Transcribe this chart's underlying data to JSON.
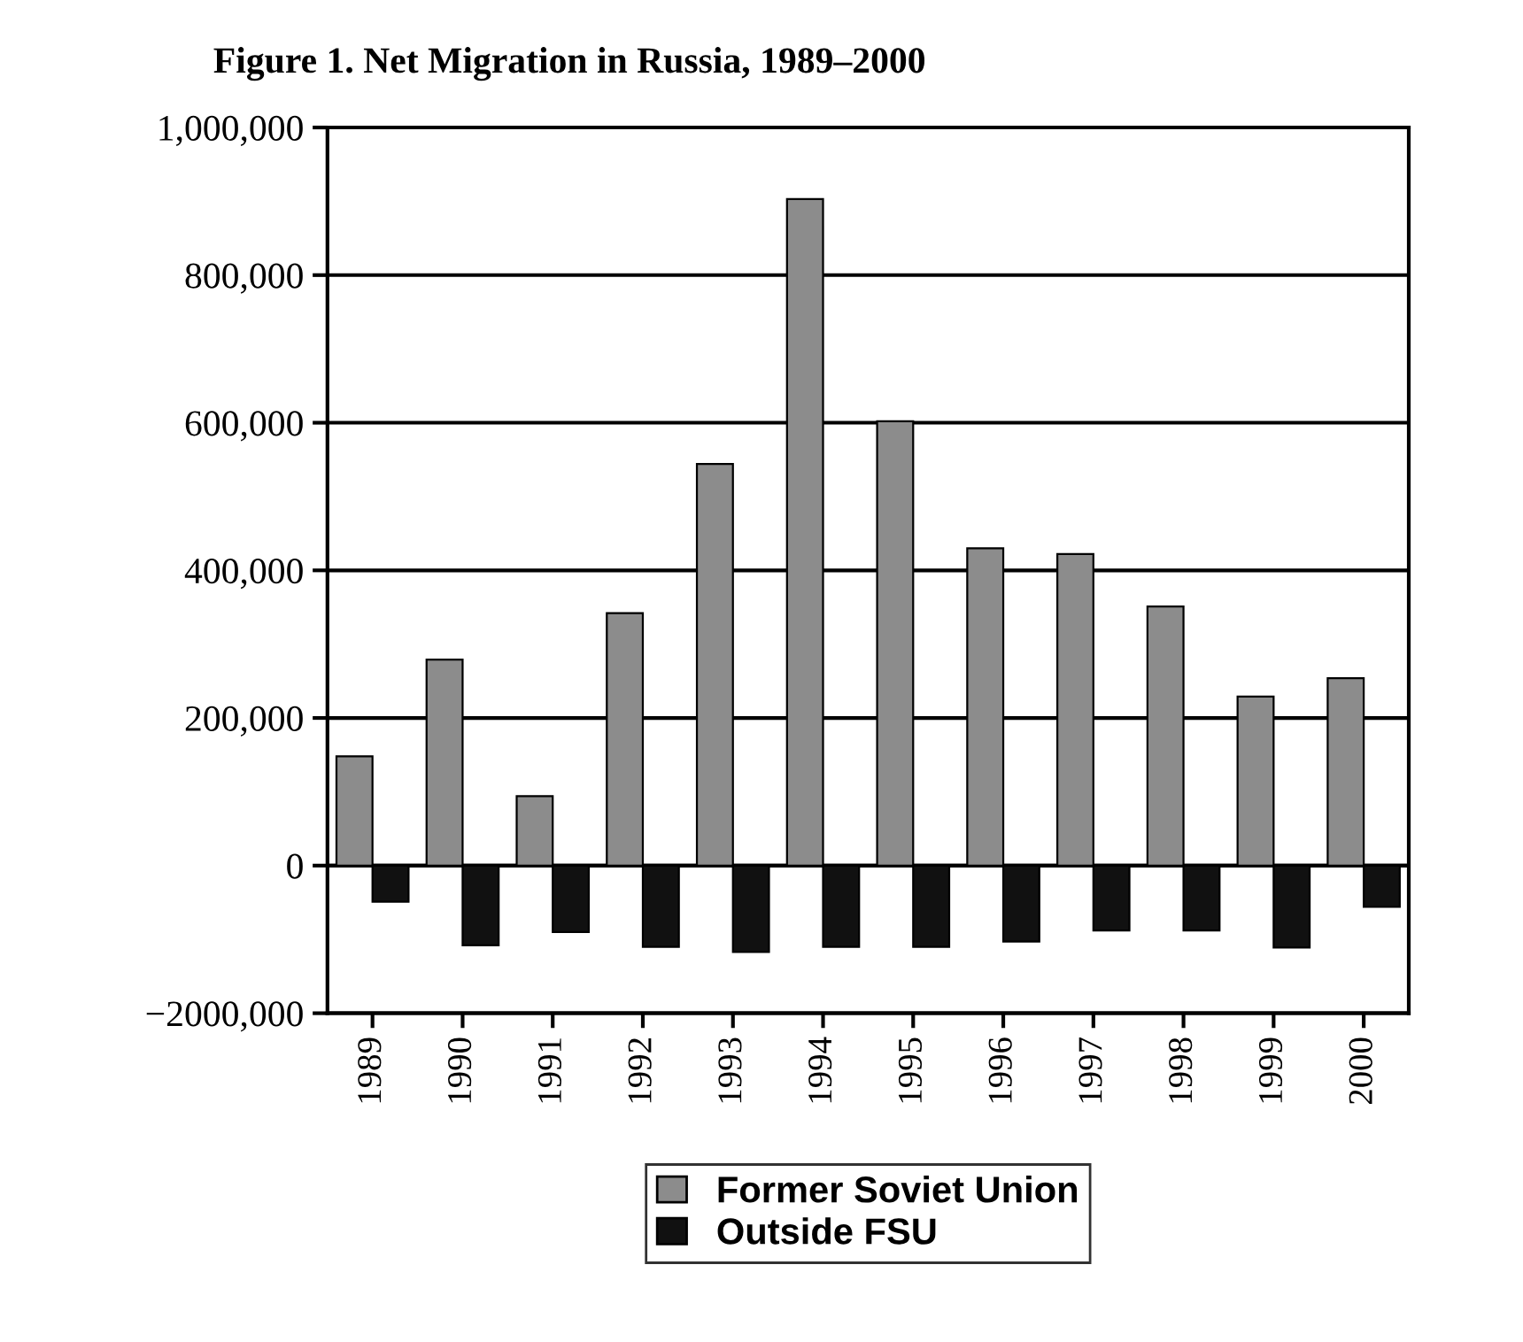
{
  "chart_data": {
    "type": "bar",
    "title": "Figure 1. Net Migration in Russia, 1989–2000",
    "categories": [
      "1989",
      "1990",
      "1991",
      "1992",
      "1993",
      "1994",
      "1995",
      "1996",
      "1997",
      "1998",
      "1999",
      "2000"
    ],
    "series": [
      {
        "name": "Former Soviet Union",
        "color": "#8c8c8c",
        "values": [
          148000,
          279000,
          94000,
          342000,
          544000,
          903000,
          602000,
          430000,
          422000,
          351000,
          229000,
          254000
        ]
      },
      {
        "name": "Outside FSU",
        "color": "#111111",
        "values": [
          -49000,
          -108000,
          -90000,
          -110000,
          -117000,
          -110000,
          -110000,
          -103000,
          -88000,
          -88000,
          -111000,
          -56000
        ]
      }
    ],
    "ylim": [
      -200000,
      1000000
    ],
    "yticks": [
      {
        "value": -200000,
        "label": "−2000,000"
      },
      {
        "value": 0,
        "label": "0"
      },
      {
        "value": 200000,
        "label": "200,000"
      },
      {
        "value": 400000,
        "label": "400,000"
      },
      {
        "value": 600000,
        "label": "600,000"
      },
      {
        "value": 800000,
        "label": "800,000"
      },
      {
        "value": 1000000,
        "label": "1,000,000"
      }
    ],
    "grid": "y",
    "legend": "bottom"
  }
}
